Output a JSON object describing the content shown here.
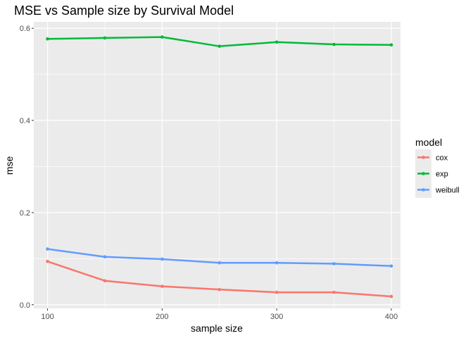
{
  "chart_data": {
    "type": "line",
    "title": "MSE vs Sample size by Survival Model",
    "xlabel": "sample size",
    "ylabel": "mse",
    "x": [
      100,
      150,
      200,
      250,
      300,
      350,
      400
    ],
    "xticks": [
      100,
      200,
      300,
      400
    ],
    "xtick_labels": [
      "100",
      "200",
      "300",
      "400"
    ],
    "yticks": [
      0.0,
      0.2,
      0.4,
      0.6
    ],
    "ytick_labels": [
      "0.0",
      "0.2",
      "0.4",
      "0.6"
    ],
    "xlim": [
      88,
      408
    ],
    "ylim": [
      -0.008,
      0.614
    ],
    "grid": true,
    "legend": {
      "title": "model",
      "position": "right"
    },
    "series": [
      {
        "name": "cox",
        "color": "#F8766D",
        "values": [
          0.094,
          0.052,
          0.04,
          0.033,
          0.027,
          0.027,
          0.018
        ]
      },
      {
        "name": "exp",
        "color": "#00BA38",
        "values": [
          0.577,
          0.579,
          0.581,
          0.561,
          0.57,
          0.565,
          0.564
        ]
      },
      {
        "name": "weibull",
        "color": "#619CFF",
        "values": [
          0.121,
          0.104,
          0.099,
          0.091,
          0.091,
          0.089,
          0.084
        ]
      }
    ]
  }
}
